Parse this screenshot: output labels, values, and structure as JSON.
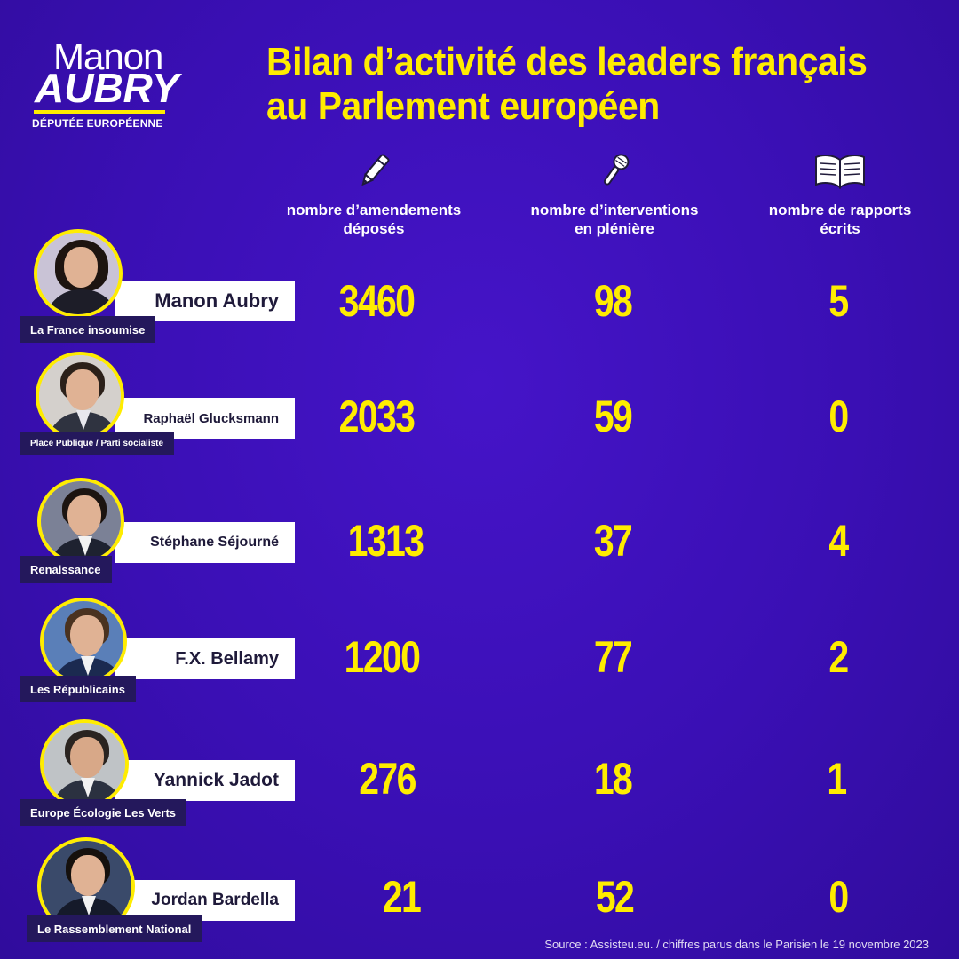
{
  "logo": {
    "first_name": "Manon",
    "last_name": "AUBRY",
    "subtitle": "DÉPUTÉE EUROPÉENNE"
  },
  "title": {
    "line1": "Bilan d’activité des leaders français",
    "line2": "au Parlement européen"
  },
  "columns": [
    {
      "icon": "pen-icon",
      "label_line1": "nombre d’amendements",
      "label_line2": "déposés"
    },
    {
      "icon": "microphone-icon",
      "label_line1": "nombre d’interventions",
      "label_line2": "en plénière"
    },
    {
      "icon": "book-icon",
      "label_line1": "nombre de rapports",
      "label_line2": "écrits"
    }
  ],
  "rows": [
    {
      "name": "Manon Aubry",
      "party": "La France insoumise",
      "amendements": "3460",
      "interventions": "98",
      "rapports": "5"
    },
    {
      "name": "Raphaël Glucksmann",
      "party": "Place Publique / Parti socialiste",
      "amendements": "2033",
      "interventions": "59",
      "rapports": "0"
    },
    {
      "name": "Stéphane Séjourné",
      "party": "Renaissance",
      "amendements": "1313",
      "interventions": "37",
      "rapports": "4"
    },
    {
      "name": "F.X. Bellamy",
      "party": "Les Républicains",
      "amendements": "1200",
      "interventions": "77",
      "rapports": "2"
    },
    {
      "name": "Yannick Jadot",
      "party": "Europe Écologie Les Verts",
      "amendements": "276",
      "interventions": "18",
      "rapports": "1"
    },
    {
      "name": "Jordan Bardella",
      "party": "Le Rassemblement National",
      "amendements": "21",
      "interventions": "52",
      "rapports": "0"
    }
  ],
  "source": "Source : Assisteu.eu. / chiffres parus dans le Parisien le 19 novembre 2023",
  "colors": {
    "background": "#3a0fb8",
    "accent": "#ffec00",
    "name_box": "#ffffff",
    "party_box": "#24185c"
  }
}
